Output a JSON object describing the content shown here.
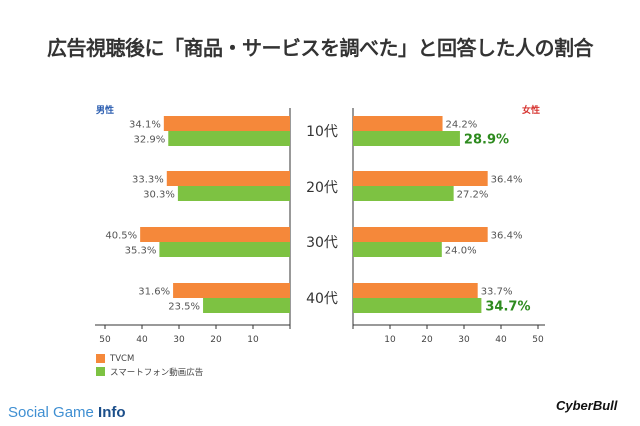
{
  "title": "広告視聴後に「商品・サービスを調べた」と回答した人の割合",
  "panels": {
    "male_label": "男性",
    "female_label": "女性"
  },
  "legend": {
    "tvcm": "TVCM",
    "smartphone": "スマートフォン動画広告"
  },
  "colors": {
    "tvcm": "#f5883a",
    "smartphone": "#7dc242",
    "highlight": "#2e8b1f"
  },
  "chart_data": {
    "type": "bar",
    "categories": [
      "10代",
      "20代",
      "30代",
      "40代"
    ],
    "xlim": [
      0,
      50
    ],
    "ticks": [
      10,
      20,
      30,
      40,
      50
    ],
    "panels": [
      {
        "name": "男性",
        "series": [
          {
            "name": "TVCM",
            "values": [
              34.1,
              33.3,
              40.5,
              31.6
            ],
            "labels": [
              "34.1%",
              "33.3%",
              "40.5%",
              "31.6%"
            ]
          },
          {
            "name": "スマートフォン動画広告",
            "values": [
              32.9,
              30.3,
              35.3,
              23.5
            ],
            "labels": [
              "32.9%",
              "30.3%",
              "35.3%",
              "23.5%"
            ]
          }
        ]
      },
      {
        "name": "女性",
        "series": [
          {
            "name": "TVCM",
            "values": [
              24.2,
              36.4,
              36.4,
              33.7
            ],
            "labels": [
              "24.2%",
              "36.4%",
              "36.4%",
              "33.7%"
            ]
          },
          {
            "name": "スマートフォン動画広告",
            "values": [
              28.9,
              27.2,
              24.0,
              34.7
            ],
            "labels": [
              "28.9%",
              "27.2%",
              "24.0%",
              "34.7%"
            ],
            "highlighted": [
              0,
              3
            ]
          }
        ]
      }
    ]
  },
  "footer": {
    "brand_light": "Social Game ",
    "brand_bold": "Info",
    "logo_text": "CyberBull"
  }
}
